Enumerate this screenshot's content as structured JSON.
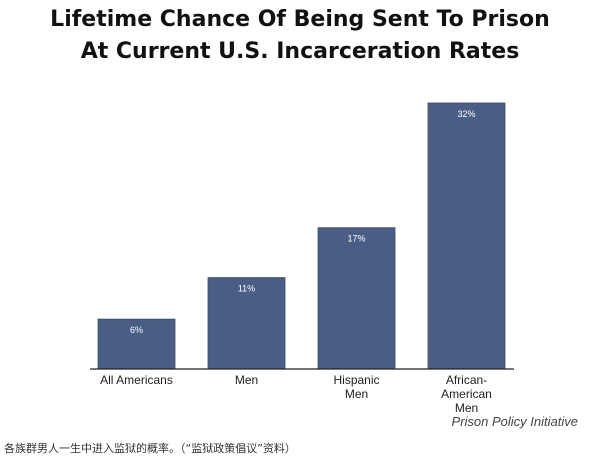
{
  "chart_data": {
    "type": "bar",
    "title": [
      "Lifetime Chance Of Being Sent To Prison",
      "At Current U.S. Incarceration Rates"
    ],
    "categories": [
      [
        "All Americans"
      ],
      [
        "Men"
      ],
      [
        "Hispanic",
        "Men"
      ],
      [
        "African-",
        "American",
        "Men"
      ]
    ],
    "values": [
      6,
      11,
      17,
      32
    ],
    "data_labels": [
      "6%",
      "11%",
      "17%",
      "32%"
    ],
    "ylim": [
      0,
      32
    ],
    "grid": false,
    "colors": {
      "bar": "#4a5d84",
      "bar_edge": "#3a4b6d",
      "axis": "#222222",
      "label": "#ffffff"
    }
  },
  "source": "Prison Policy Initiative",
  "caption": "各族群男人一生中进入监狱的概率。（“监狱政策倡议”资料）"
}
